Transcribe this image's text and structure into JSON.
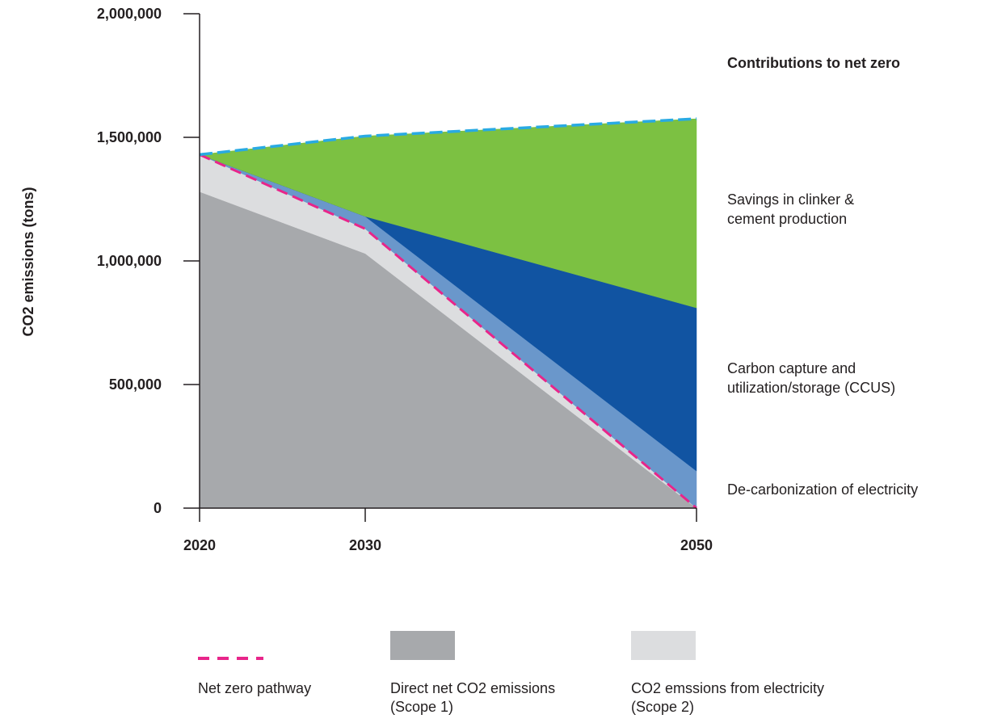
{
  "chart_data": {
    "type": "area",
    "ylabel": "CO2 emissions (tons)",
    "xlabel": "",
    "x": [
      2020,
      2030,
      2050
    ],
    "x_tick_labels": [
      "2020",
      "2030",
      "2050"
    ],
    "ylim": [
      0,
      2000000
    ],
    "y_ticks": [
      0,
      500000,
      1000000,
      1500000,
      2000000
    ],
    "y_tick_labels": [
      "0",
      "500,000",
      "1,000,000",
      "1,500,000",
      "2,000,000"
    ],
    "stack": [
      {
        "key": "scope1",
        "values": [
          1280000,
          1030000,
          0
        ],
        "color": "#a7a9ac"
      },
      {
        "key": "scope2",
        "values": [
          150000,
          100000,
          0
        ],
        "color": "#dcdddf"
      },
      {
        "key": "electricity",
        "values": [
          0,
          50000,
          150000
        ],
        "color": "#6a97cb"
      },
      {
        "key": "ccus",
        "values": [
          0,
          0,
          660000
        ],
        "color": "#1154a2"
      },
      {
        "key": "clinker",
        "values": [
          0,
          325000,
          765000
        ],
        "color": "#7cc142"
      }
    ],
    "lines": [
      {
        "key": "net_zero",
        "values": [
          1430000,
          1130000,
          0
        ],
        "color": "#e8258a",
        "style": "dashed"
      },
      {
        "key": "baseline",
        "values": [
          1430000,
          1505000,
          1575000
        ],
        "color": "#29aae2",
        "style": "dashed"
      }
    ],
    "annotations": {
      "title": "Contributions to net zero",
      "clinker": "Savings in clinker &\ncement production",
      "ccus": "Carbon capture and\nutilization/storage (CCUS)",
      "electricity": "De-carbonization of electricity"
    },
    "legend": [
      {
        "label": "Net zero pathway",
        "color": "#e8258a",
        "kind": "dashed-line"
      },
      {
        "label": "Direct net CO2 emissions\n(Scope 1)",
        "color": "#a7a9ac",
        "kind": "swatch"
      },
      {
        "label": "CO2 emssions from electricity\n(Scope 2)",
        "color": "#dcdddf",
        "kind": "swatch"
      }
    ]
  }
}
